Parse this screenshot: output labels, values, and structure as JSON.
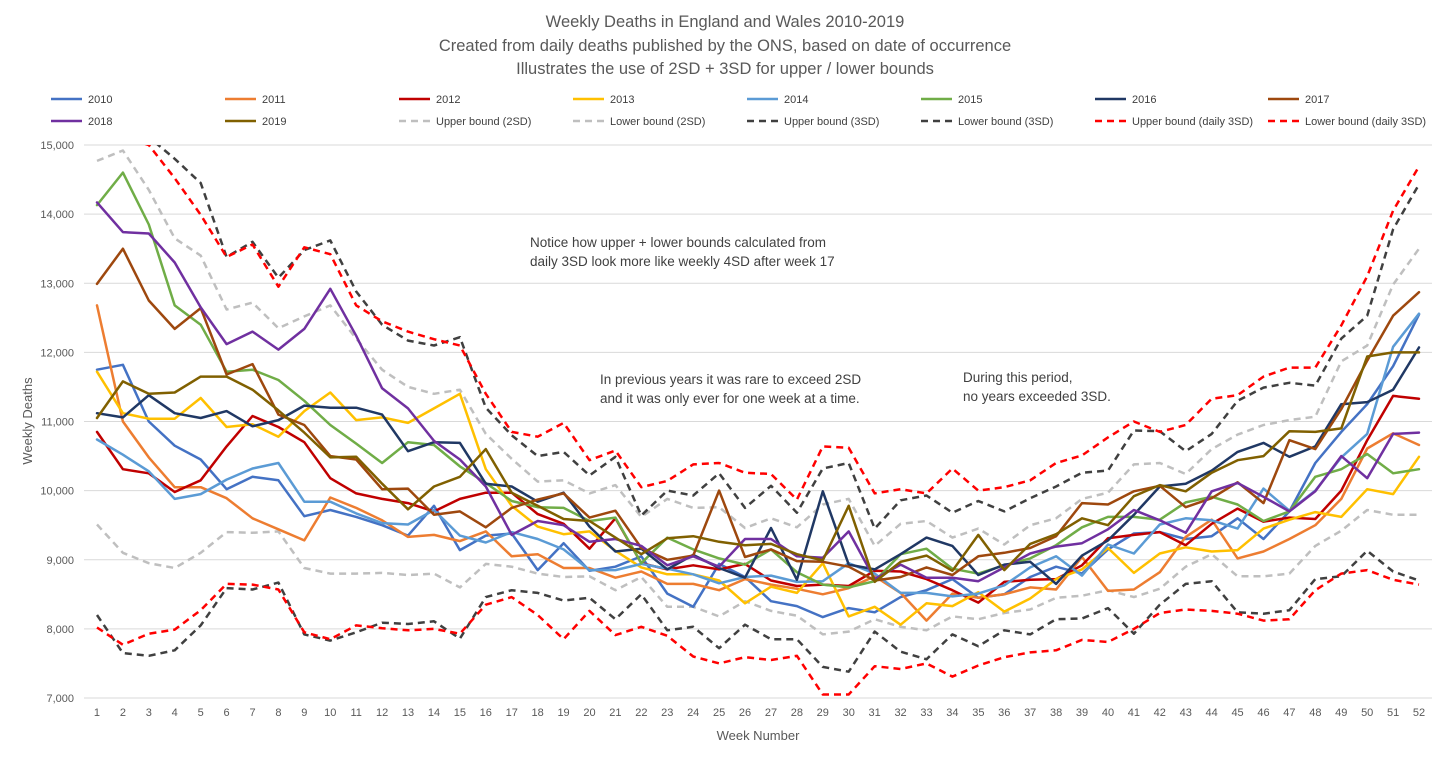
{
  "chart_data": {
    "type": "line",
    "title": "Weekly Deaths in England and Wales 2010-2019",
    "subtitle": [
      "Created from daily deaths published by the ONS, based on date of occurrence",
      "Illustrates the use of 2SD + 3SD for upper / lower bounds"
    ],
    "xlabel": "Week Number",
    "ylabel": "Weekly Deaths",
    "ylim": [
      7000,
      15000
    ],
    "yticks": [
      7000,
      8000,
      9000,
      10000,
      11000,
      12000,
      13000,
      14000,
      15000
    ],
    "ytick_labels": [
      "7,000",
      "8,000",
      "9,000",
      "10,000",
      "11,000",
      "12,000",
      "13,000",
      "14,000",
      "15,000"
    ],
    "x": [
      1,
      2,
      3,
      4,
      5,
      6,
      7,
      8,
      9,
      10,
      11,
      12,
      13,
      14,
      15,
      16,
      17,
      18,
      19,
      20,
      21,
      22,
      23,
      24,
      25,
      26,
      27,
      28,
      29,
      30,
      31,
      32,
      33,
      34,
      35,
      36,
      37,
      38,
      39,
      40,
      41,
      42,
      43,
      44,
      45,
      46,
      47,
      48,
      49,
      50,
      51,
      52
    ],
    "grid": "horizontal",
    "legend_position": "top",
    "series": [
      {
        "name": "2010",
        "color": "#4472C4",
        "dash": "solid",
        "values": [
          11750,
          11820,
          11000,
          10650,
          10450,
          10020,
          10200,
          10150,
          9630,
          9720,
          9620,
          9500,
          9350,
          9780,
          9140,
          9350,
          9380,
          8850,
          9240,
          8840,
          8900,
          9050,
          8510,
          8320,
          8940,
          8750,
          8400,
          8330,
          8170,
          8300,
          8240,
          8460,
          8560,
          8720,
          8450,
          8500,
          8750,
          8900,
          8800,
          9150,
          9380,
          9400,
          9300,
          9340,
          9600,
          9300,
          9700,
          10400,
          10850,
          11250,
          11800,
          12550
        ]
      },
      {
        "name": "2011",
        "color": "#ED7D31",
        "dash": "solid",
        "values": [
          12680,
          11000,
          10480,
          10050,
          10050,
          9890,
          9600,
          9440,
          9280,
          9900,
          9750,
          9570,
          9330,
          9360,
          9270,
          9410,
          9050,
          9080,
          8880,
          8880,
          8740,
          8830,
          8650,
          8650,
          8560,
          8720,
          8640,
          8580,
          8500,
          8590,
          8760,
          8520,
          8120,
          8510,
          8450,
          8500,
          8600,
          8570,
          9040,
          8550,
          8570,
          8820,
          9330,
          9580,
          9020,
          9120,
          9300,
          9500,
          9880,
          10610,
          10830,
          10660
        ]
      },
      {
        "name": "2012",
        "color": "#C00000",
        "dash": "solid",
        "values": [
          10850,
          10310,
          10250,
          9980,
          10150,
          10640,
          11080,
          10920,
          10700,
          10180,
          9960,
          9880,
          9820,
          9700,
          9880,
          9970,
          9970,
          9660,
          9520,
          9160,
          9600,
          8950,
          8860,
          8920,
          8860,
          8940,
          8700,
          8620,
          8640,
          8620,
          8840,
          8830,
          8720,
          8560,
          8380,
          8680,
          8710,
          8720,
          8920,
          9310,
          9360,
          9400,
          9210,
          9520,
          9740,
          9550,
          9610,
          9590,
          10000,
          10730,
          11370,
          11330
        ]
      },
      {
        "name": "2013",
        "color": "#FFC000",
        "dash": "solid",
        "values": [
          11720,
          11120,
          11040,
          11040,
          11340,
          10920,
          10960,
          10780,
          11150,
          11420,
          11020,
          11060,
          10980,
          11190,
          11400,
          10310,
          9780,
          9480,
          9370,
          9410,
          9130,
          8890,
          8790,
          8790,
          8700,
          8370,
          8610,
          8520,
          8950,
          8180,
          8320,
          8060,
          8370,
          8330,
          8530,
          8250,
          8440,
          8720,
          8860,
          9170,
          8810,
          9090,
          9180,
          9120,
          9140,
          9450,
          9580,
          9690,
          9620,
          10020,
          9950,
          10490
        ]
      },
      {
        "name": "2014",
        "color": "#5B9BD5",
        "dash": "solid",
        "values": [
          10740,
          10520,
          10280,
          9880,
          9950,
          10160,
          10320,
          10400,
          9840,
          9840,
          9670,
          9530,
          9510,
          9720,
          9350,
          9250,
          9400,
          9300,
          9150,
          8850,
          8850,
          8940,
          8870,
          8790,
          8660,
          8750,
          8770,
          8680,
          8690,
          8950,
          8800,
          8520,
          8520,
          8470,
          8510,
          8630,
          8890,
          9050,
          8770,
          9220,
          9090,
          9510,
          9600,
          9570,
          9450,
          10030,
          9710,
          10000,
          10480,
          10820,
          12080,
          12560
        ]
      },
      {
        "name": "2015",
        "color": "#70AD47",
        "dash": "solid",
        "values": [
          14130,
          14600,
          13850,
          12680,
          12400,
          11720,
          11750,
          11600,
          11300,
          10950,
          10680,
          10400,
          10700,
          10660,
          10350,
          10110,
          9850,
          9760,
          9750,
          9560,
          9610,
          8950,
          9320,
          9150,
          9020,
          8930,
          9150,
          8820,
          8640,
          8600,
          8690,
          9080,
          9160,
          8870,
          8800,
          8920,
          9020,
          9210,
          9470,
          9620,
          9620,
          9580,
          9830,
          9910,
          9800,
          9560,
          9700,
          10200,
          10310,
          10530,
          10250,
          10310
        ]
      },
      {
        "name": "2016",
        "color": "#203864",
        "dash": "solid",
        "values": [
          11120,
          11060,
          11380,
          11120,
          11050,
          11150,
          10930,
          11020,
          11230,
          11200,
          11200,
          11100,
          10570,
          10700,
          10690,
          10100,
          10060,
          9840,
          9970,
          9480,
          9120,
          9160,
          8860,
          9070,
          8880,
          8740,
          9460,
          8710,
          9990,
          8930,
          8860,
          9080,
          9320,
          9200,
          8780,
          8930,
          8970,
          8650,
          9060,
          9280,
          9650,
          10060,
          10100,
          10290,
          10560,
          10690,
          10490,
          10640,
          11250,
          11280,
          11460,
          12070
        ]
      },
      {
        "name": "2017",
        "color": "#9E480E",
        "dash": "solid",
        "values": [
          12990,
          13500,
          12750,
          12340,
          12640,
          11680,
          11830,
          11100,
          10950,
          10500,
          10450,
          10020,
          10030,
          9650,
          9700,
          9470,
          9750,
          9870,
          9960,
          9610,
          9710,
          9170,
          9000,
          9060,
          10000,
          9040,
          9150,
          8980,
          8970,
          8900,
          8700,
          8750,
          8890,
          8780,
          9050,
          9100,
          9170,
          9340,
          9820,
          9800,
          9990,
          10070,
          9760,
          9890,
          10120,
          9820,
          10730,
          10600,
          11180,
          11880,
          12530,
          12870
        ]
      },
      {
        "name": "2018",
        "color": "#7030A0",
        "dash": "solid",
        "values": [
          14170,
          13740,
          13720,
          13300,
          12650,
          12120,
          12300,
          12040,
          12340,
          12920,
          12240,
          11480,
          11190,
          10720,
          10450,
          10060,
          9360,
          9560,
          9500,
          9260,
          9300,
          9200,
          8920,
          9050,
          8900,
          9300,
          9300,
          9050,
          9030,
          9410,
          8720,
          8930,
          8740,
          8740,
          8690,
          8890,
          9090,
          9190,
          9240,
          9440,
          9720,
          9570,
          9390,
          9990,
          10110,
          9910,
          9700,
          9990,
          10500,
          10180,
          10820,
          10840
        ]
      },
      {
        "name": "2019",
        "color": "#806000",
        "dash": "solid",
        "values": [
          11050,
          11580,
          11400,
          11420,
          11650,
          11650,
          11460,
          11160,
          10840,
          10480,
          10490,
          10100,
          9730,
          10060,
          10200,
          10600,
          9970,
          9780,
          9590,
          9560,
          9320,
          9080,
          9310,
          9340,
          9260,
          9210,
          9230,
          9080,
          8990,
          9780,
          8680,
          8970,
          9060,
          8840,
          9360,
          8850,
          9230,
          9370,
          9600,
          9500,
          9920,
          10080,
          9990,
          10260,
          10440,
          10500,
          10860,
          10850,
          10900,
          11940,
          12000,
          12000
        ]
      },
      {
        "name": "Upper bound (2SD)",
        "color": "#BFBFBF",
        "dash": "dashed",
        "values": [
          14770,
          14920,
          14350,
          13650,
          13400,
          12620,
          12720,
          12350,
          12520,
          12680,
          12200,
          11750,
          11500,
          11400,
          11460,
          10820,
          10460,
          10130,
          10150,
          9960,
          10080,
          9620,
          9880,
          9750,
          9760,
          9460,
          9600,
          9470,
          9800,
          9880,
          9200,
          9520,
          9560,
          9320,
          9450,
          9220,
          9500,
          9600,
          9880,
          9970,
          10380,
          10400,
          10240,
          10600,
          10810,
          10950,
          11020,
          11070,
          11870,
          12100,
          12980,
          13500
        ]
      },
      {
        "name": "Lower bound (2SD)",
        "color": "#BFBFBF",
        "dash": "dashed",
        "values": [
          9510,
          9100,
          8950,
          8880,
          9100,
          9400,
          9390,
          9410,
          8880,
          8800,
          8800,
          8810,
          8780,
          8800,
          8600,
          8940,
          8900,
          8800,
          8750,
          8760,
          8560,
          8750,
          8320,
          8320,
          8180,
          8400,
          8260,
          8190,
          7920,
          7960,
          8140,
          8030,
          7980,
          8180,
          8140,
          8230,
          8280,
          8450,
          8480,
          8560,
          8460,
          8580,
          8900,
          9080,
          8760,
          8760,
          8800,
          9200,
          9420,
          9720,
          9650,
          9650
        ]
      },
      {
        "name": "Upper bound (3SD)",
        "color": "#404040",
        "dash": "dashed",
        "values": [
          15500,
          15400,
          15300,
          14800,
          14450,
          13380,
          13600,
          13080,
          13480,
          13620,
          12880,
          12400,
          12170,
          12100,
          12220,
          11200,
          10800,
          10500,
          10560,
          10220,
          10490,
          9640,
          10000,
          9930,
          10250,
          9750,
          10070,
          9680,
          10320,
          10400,
          9450,
          9860,
          9930,
          9680,
          9850,
          9700,
          9890,
          10060,
          10260,
          10290,
          10870,
          10860,
          10570,
          10820,
          11300,
          11490,
          11560,
          11520,
          12200,
          12530,
          13780,
          14430
        ]
      },
      {
        "name": "Lower bound (3SD)",
        "color": "#404040",
        "dash": "dashed",
        "values": [
          8200,
          7650,
          7610,
          7690,
          8050,
          8590,
          8570,
          8670,
          7920,
          7830,
          7950,
          8090,
          8070,
          8110,
          7860,
          8460,
          8560,
          8520,
          8410,
          8450,
          8140,
          8500,
          7980,
          8030,
          7720,
          8060,
          7850,
          7850,
          7450,
          7380,
          7960,
          7670,
          7560,
          7920,
          7750,
          7980,
          7920,
          8140,
          8150,
          8300,
          7930,
          8350,
          8650,
          8690,
          8240,
          8220,
          8270,
          8720,
          8760,
          9130,
          8830,
          8700
        ]
      },
      {
        "name": "Upper bound (daily 3SD)",
        "color": "#FF0000",
        "dash": "dashed",
        "values": [
          15550,
          15300,
          15000,
          14520,
          13990,
          13380,
          13560,
          12950,
          13520,
          13420,
          12680,
          12450,
          12300,
          12190,
          12100,
          11400,
          10850,
          10780,
          10980,
          10440,
          10580,
          10050,
          10140,
          10380,
          10400,
          10260,
          10240,
          9870,
          10640,
          10620,
          9960,
          10020,
          9960,
          10320,
          10000,
          10050,
          10150,
          10400,
          10510,
          10770,
          11000,
          10850,
          10950,
          11330,
          11380,
          11650,
          11780,
          11780,
          12390,
          13100,
          14050,
          14690
        ]
      },
      {
        "name": "Lower bound (daily 3SD)",
        "color": "#FF0000",
        "dash": "dashed",
        "values": [
          8020,
          7770,
          7930,
          7990,
          8270,
          8650,
          8640,
          8570,
          7950,
          7850,
          8050,
          8010,
          7980,
          8000,
          7930,
          8350,
          8460,
          8200,
          7850,
          8260,
          7910,
          8030,
          7900,
          7600,
          7500,
          7590,
          7550,
          7610,
          7050,
          7050,
          7460,
          7420,
          7500,
          7310,
          7470,
          7590,
          7660,
          7690,
          7840,
          7810,
          8000,
          8230,
          8280,
          8260,
          8220,
          8120,
          8140,
          8560,
          8800,
          8850,
          8710,
          8640
        ]
      }
    ],
    "annotations": [
      {
        "id": "a1",
        "lines": [
          "Notice how upper + lower bounds calculated from",
          "daily 3SD look more like weekly 4SD after week 17"
        ]
      },
      {
        "id": "a2",
        "lines": [
          "In previous years it was rare to exceed 2SD",
          "and it was only ever for one week at a time."
        ]
      },
      {
        "id": "a3",
        "lines": [
          "During this period,",
          "no years exceeded 3SD."
        ]
      }
    ]
  }
}
